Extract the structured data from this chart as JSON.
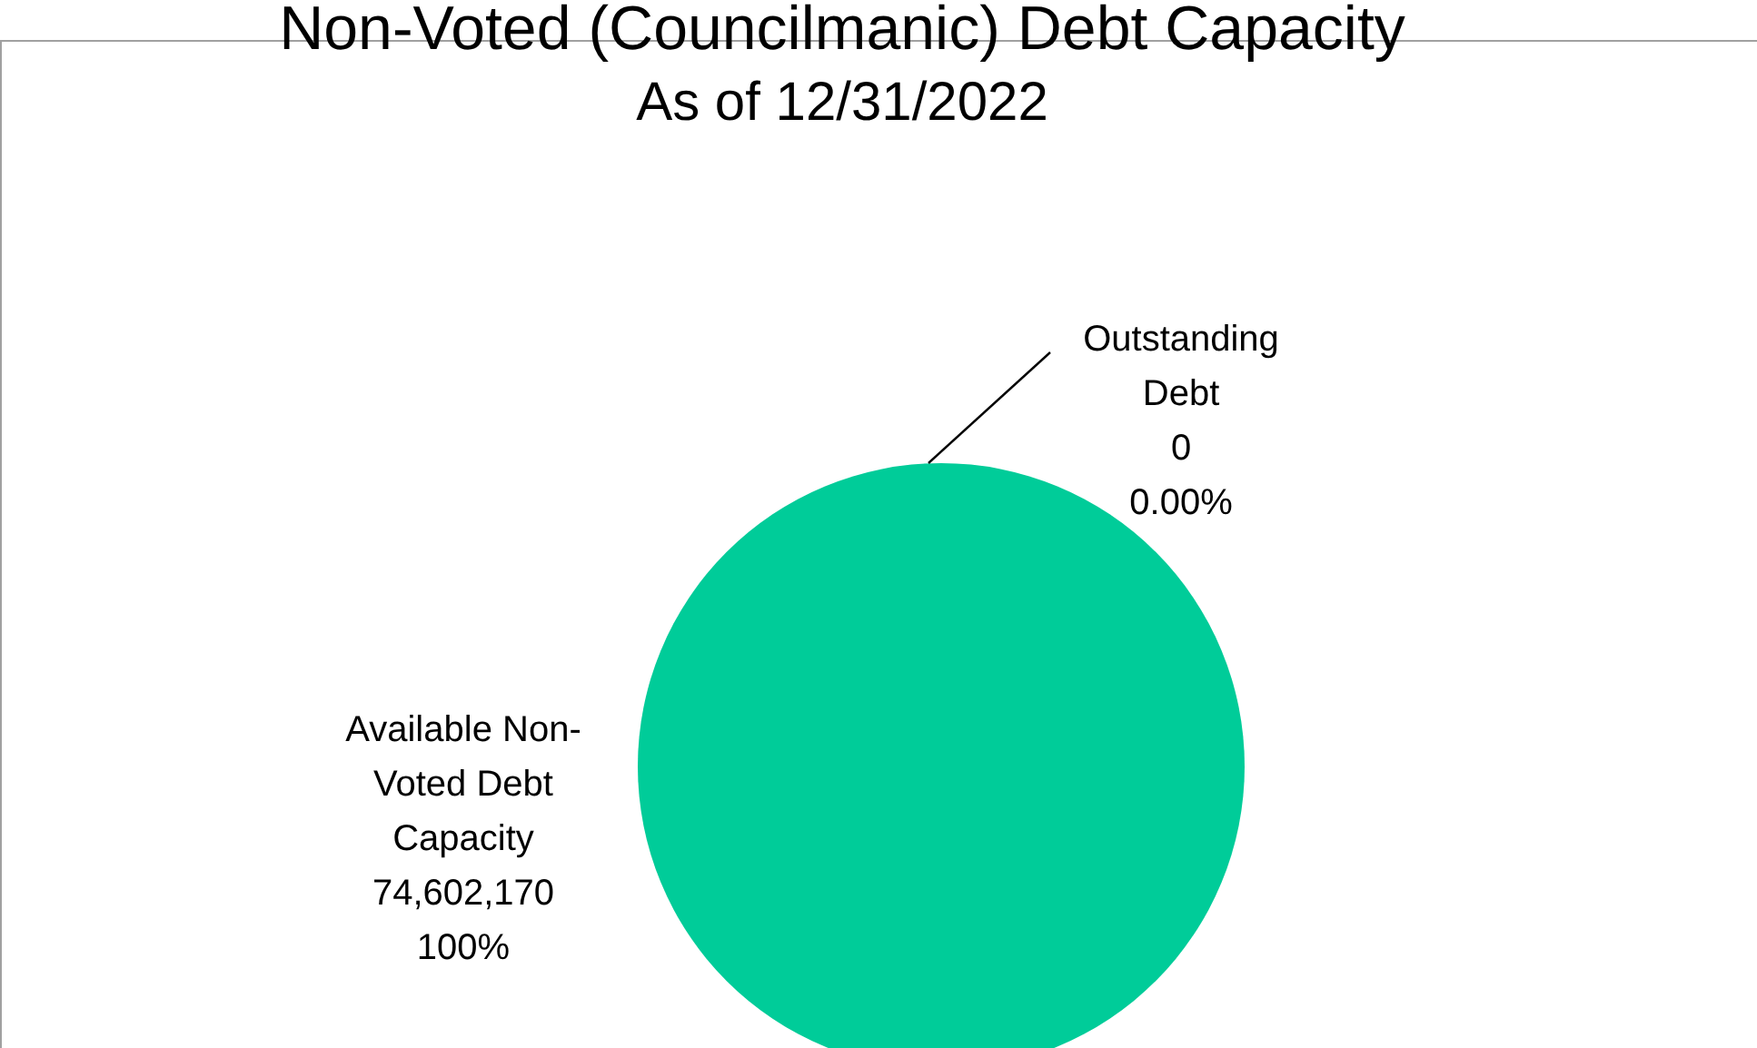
{
  "chart_data": {
    "type": "pie",
    "title": "Non-Voted (Councilmanic) Debt Capacity",
    "subtitle": "As of 12/31/2022",
    "categories": [
      "Outstanding Debt",
      "Available Non-Voted Debt Capacity"
    ],
    "values": [
      0,
      74602170
    ],
    "colors": [
      "#00cc99",
      "#00cc99"
    ],
    "value_labels": [
      "0\n0.00%",
      "74,602,170\n100%"
    ]
  }
}
